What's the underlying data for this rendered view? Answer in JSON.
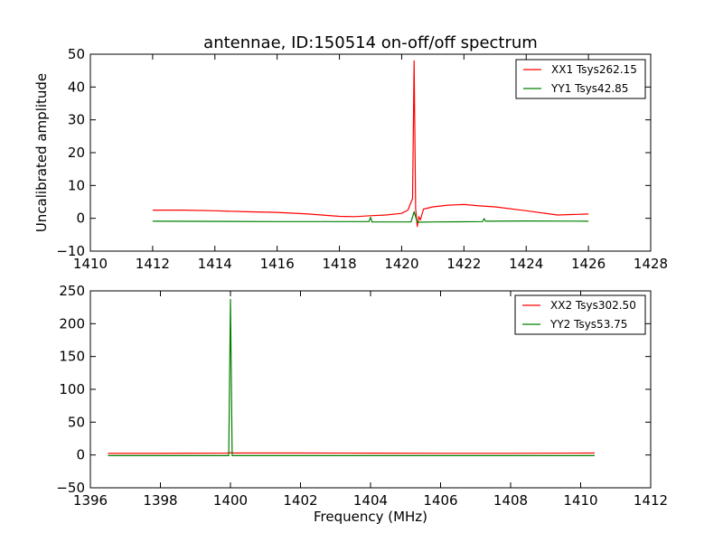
{
  "chart_data": [
    {
      "type": "line",
      "title": "antennae, ID:150514 on-off/off spectrum",
      "xlabel": "",
      "ylabel": "Uncalibrated amplitude",
      "xlim": [
        1410,
        1428
      ],
      "ylim": [
        -10,
        50
      ],
      "xticks": [
        "1410",
        "1412",
        "1414",
        "1416",
        "1418",
        "1420",
        "1422",
        "1424",
        "1426",
        "1428"
      ],
      "yticks": [
        "−10",
        "0",
        "10",
        "20",
        "30",
        "40",
        "50"
      ],
      "legend_position": "top-right",
      "series": [
        {
          "name": "XX1 Tsys262.15",
          "color": "#ff0000",
          "x": [
            1412.0,
            1413.0,
            1414.0,
            1415.0,
            1416.0,
            1417.0,
            1418.0,
            1418.5,
            1419.0,
            1419.5,
            1420.0,
            1420.2,
            1420.35,
            1420.4,
            1420.45,
            1420.5,
            1420.55,
            1420.6,
            1420.7,
            1421.0,
            1421.5,
            1422.0,
            1422.5,
            1423.0,
            1424.0,
            1425.0,
            1426.0
          ],
          "y": [
            2.5,
            2.5,
            2.3,
            2.0,
            1.8,
            1.3,
            0.6,
            0.5,
            0.8,
            1.0,
            1.5,
            2.5,
            6.0,
            48.0,
            3.0,
            -2.5,
            0.5,
            -0.5,
            2.8,
            3.5,
            4.0,
            4.2,
            3.8,
            3.5,
            2.3,
            1.0,
            1.3
          ]
        },
        {
          "name": "YY1 Tsys42.85",
          "color": "#008000",
          "x": [
            1412.0,
            1416.0,
            1418.95,
            1419.0,
            1419.05,
            1420.3,
            1420.4,
            1420.5,
            1421.0,
            1422.6,
            1422.65,
            1422.7,
            1424.0,
            1426.0
          ],
          "y": [
            -0.9,
            -1.0,
            -1.0,
            0.3,
            -1.1,
            -1.1,
            2.0,
            -1.2,
            -1.1,
            -1.0,
            -0.1,
            -0.9,
            -0.8,
            -0.9
          ]
        }
      ]
    },
    {
      "type": "line",
      "title": "",
      "xlabel": "Frequency (MHz)",
      "ylabel": "",
      "xlim": [
        1396,
        1412
      ],
      "ylim": [
        -50,
        250
      ],
      "xticks": [
        "1396",
        "1398",
        "1400",
        "1402",
        "1404",
        "1406",
        "1408",
        "1410",
        "1412"
      ],
      "yticks": [
        "−50",
        "0",
        "50",
        "100",
        "150",
        "200",
        "250"
      ],
      "legend_position": "top-right",
      "series": [
        {
          "name": "XX2 Tsys302.50",
          "color": "#ff0000",
          "x": [
            1396.5,
            1398.0,
            1399.9,
            1400.0,
            1400.1,
            1402.0,
            1404.0,
            1406.0,
            1408.0,
            1410.4
          ],
          "y": [
            2.5,
            2.5,
            2.8,
            3.5,
            3.0,
            3.0,
            2.8,
            2.6,
            2.6,
            3.0
          ]
        },
        {
          "name": "YY2 Tsys53.75",
          "color": "#008000",
          "x": [
            1396.5,
            1399.95,
            1400.0,
            1400.05,
            1402.0,
            1406.0,
            1410.4
          ],
          "y": [
            -1.0,
            -1.0,
            237.0,
            -1.0,
            -1.0,
            -1.0,
            -1.0
          ]
        }
      ]
    }
  ]
}
